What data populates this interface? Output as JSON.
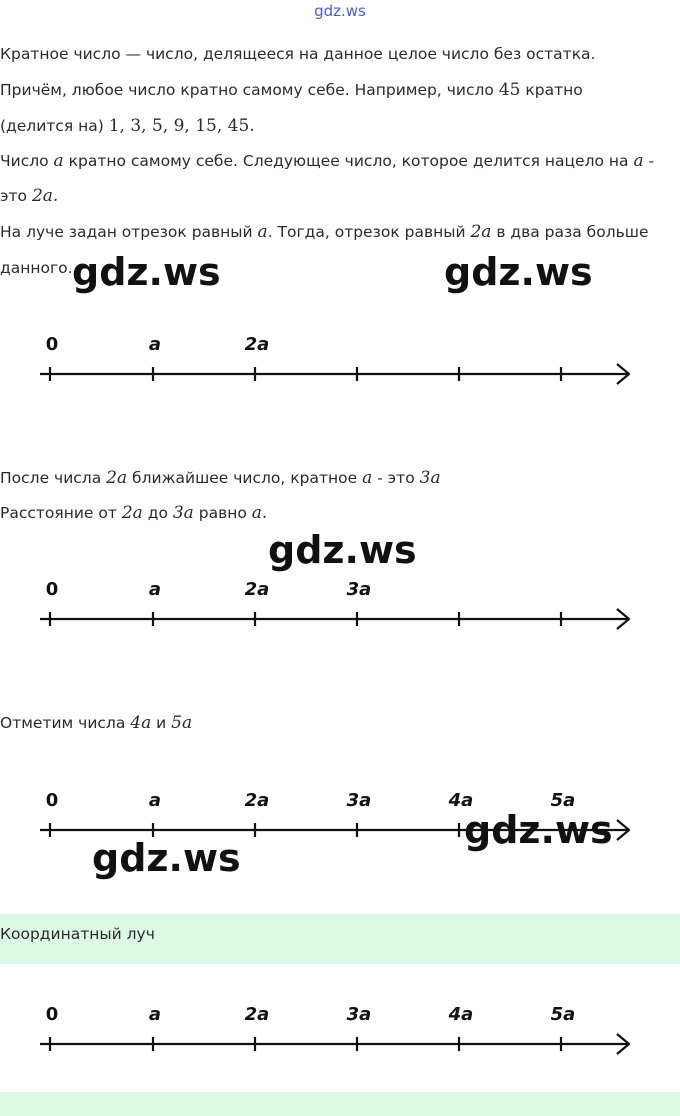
{
  "site_logo": "gdz.ws",
  "watermark": "gdz.ws",
  "para1": {
    "line1": "Кратное число — число, делящееся на данное целое число без остатка.",
    "line2_a": "Причём, любое число кратно самому себе. Например, число ",
    "line2_num": "45",
    "line2_b": " кратно",
    "line3_a": "(делится на) ",
    "line3_nums": "1, 3, 5, 9, 15, 45."
  },
  "para2": {
    "line1_a": "Число ",
    "var_a": "a",
    "line1_b": " кратно самому себе. Следующее число, которое делится нацело на ",
    "line1_c": " -",
    "line2_a": "это ",
    "line2_val": "2a."
  },
  "para3": {
    "line1_a": "На луче задан отрезок равный ",
    "line1_b": ". Тогда, отрезок равный ",
    "val_2a": "2a",
    "line1_c": " в два раза больше",
    "line2": "данного."
  },
  "para4": {
    "line1_a": "После числа ",
    "val_2a": "2a",
    "line1_b": " ближайшее число, кратное ",
    "line1_c": " - это ",
    "val_3a": "3a",
    "line2_a": "Расстояние от ",
    "line2_b": " до ",
    "line2_c": " равно ",
    "val_a_dot": "a."
  },
  "para5": {
    "text_a": "Отметим числа ",
    "val_4a": "4a",
    "text_b": " и ",
    "val_5a": "5a"
  },
  "note": {
    "label": "Координатный луч"
  },
  "rays": [
    {
      "labels": [
        "0",
        "a",
        "2a"
      ]
    },
    {
      "labels": [
        "0",
        "a",
        "2a",
        "3a"
      ]
    },
    {
      "labels": [
        "0",
        "a",
        "2a",
        "3a",
        "4a",
        "5a"
      ]
    },
    {
      "labels": [
        "0",
        "a",
        "2a",
        "3a",
        "4a",
        "5a"
      ]
    }
  ],
  "colors": {
    "note_bg": "#dcf9e6",
    "logo": "#4a5bd6",
    "line": "#111111"
  }
}
